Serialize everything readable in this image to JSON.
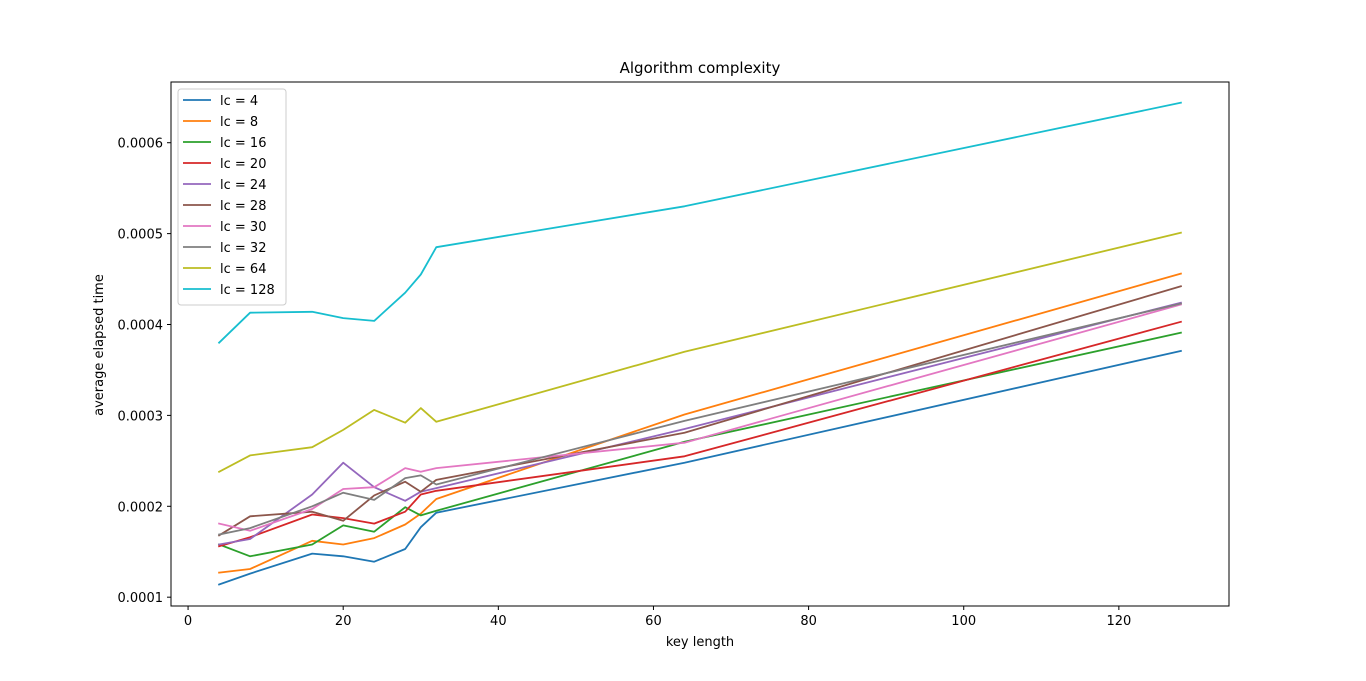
{
  "chart_data": {
    "type": "line",
    "title": "Algorithm complexity",
    "xlabel": "key length",
    "ylabel": "average elapsed time",
    "xlim": [
      -2.2,
      134.2
    ],
    "ylim": [
      9.03e-05,
      0.0006668
    ],
    "xticks": [
      0,
      20,
      40,
      60,
      80,
      100,
      120
    ],
    "yticks": [
      0.0001,
      0.0002,
      0.0003,
      0.0004,
      0.0005,
      0.0006
    ],
    "xtick_labels": [
      "0",
      "20",
      "40",
      "60",
      "80",
      "100",
      "120"
    ],
    "ytick_labels": [
      "0.0001",
      "0.0002",
      "0.0003",
      "0.0004",
      "0.0005",
      "0.0006"
    ],
    "grid": false,
    "legend_position": "upper-left",
    "x": [
      4,
      8,
      16,
      20,
      24,
      28,
      30,
      32,
      64,
      128
    ],
    "series": [
      {
        "name": "lc = 4",
        "color": "#1f77b4",
        "values": [
          0.000114,
          0.000126,
          0.000148,
          0.000145,
          0.000139,
          0.000153,
          0.000177,
          0.000193,
          0.000248,
          0.000371
        ]
      },
      {
        "name": "lc = 8",
        "color": "#ff7f0e",
        "values": [
          0.000127,
          0.000131,
          0.000162,
          0.000158,
          0.000165,
          0.00018,
          0.000192,
          0.000208,
          0.000301,
          0.000456
        ]
      },
      {
        "name": "lc = 16",
        "color": "#2ca02c",
        "values": [
          0.000158,
          0.000145,
          0.000158,
          0.000179,
          0.000172,
          0.000199,
          0.00019,
          0.000195,
          0.000271,
          0.000391
        ]
      },
      {
        "name": "lc = 20",
        "color": "#d62728",
        "values": [
          0.000156,
          0.000166,
          0.000191,
          0.000187,
          0.000181,
          0.000194,
          0.000213,
          0.000217,
          0.000255,
          0.000403
        ]
      },
      {
        "name": "lc = 24",
        "color": "#9467bd",
        "values": [
          0.000158,
          0.000164,
          0.000213,
          0.000248,
          0.000221,
          0.000206,
          0.000216,
          0.00022,
          0.000285,
          0.000424
        ]
      },
      {
        "name": "lc = 28",
        "color": "#8c564b",
        "values": [
          0.000168,
          0.000189,
          0.000194,
          0.000184,
          0.000212,
          0.000227,
          0.000216,
          0.000229,
          0.000281,
          0.000442
        ]
      },
      {
        "name": "lc = 30",
        "color": "#e377c2",
        "values": [
          0.000181,
          0.000173,
          0.000197,
          0.000219,
          0.000221,
          0.000242,
          0.000238,
          0.000242,
          0.00027,
          0.000422
        ]
      },
      {
        "name": "lc = 32",
        "color": "#7f7f7f",
        "values": [
          0.000169,
          0.000176,
          0.0002,
          0.000215,
          0.000207,
          0.000231,
          0.000234,
          0.000224,
          0.000294,
          0.000423
        ]
      },
      {
        "name": "lc = 64",
        "color": "#bcbd22",
        "values": [
          0.000238,
          0.000256,
          0.000265,
          0.000284,
          0.000306,
          0.000292,
          0.000308,
          0.000293,
          0.00037,
          0.000501
        ]
      },
      {
        "name": "lc = 128",
        "color": "#17becf",
        "values": [
          0.00038,
          0.000413,
          0.000414,
          0.000407,
          0.000404,
          0.000435,
          0.000455,
          0.000485,
          0.00053,
          0.000644
        ]
      }
    ]
  }
}
